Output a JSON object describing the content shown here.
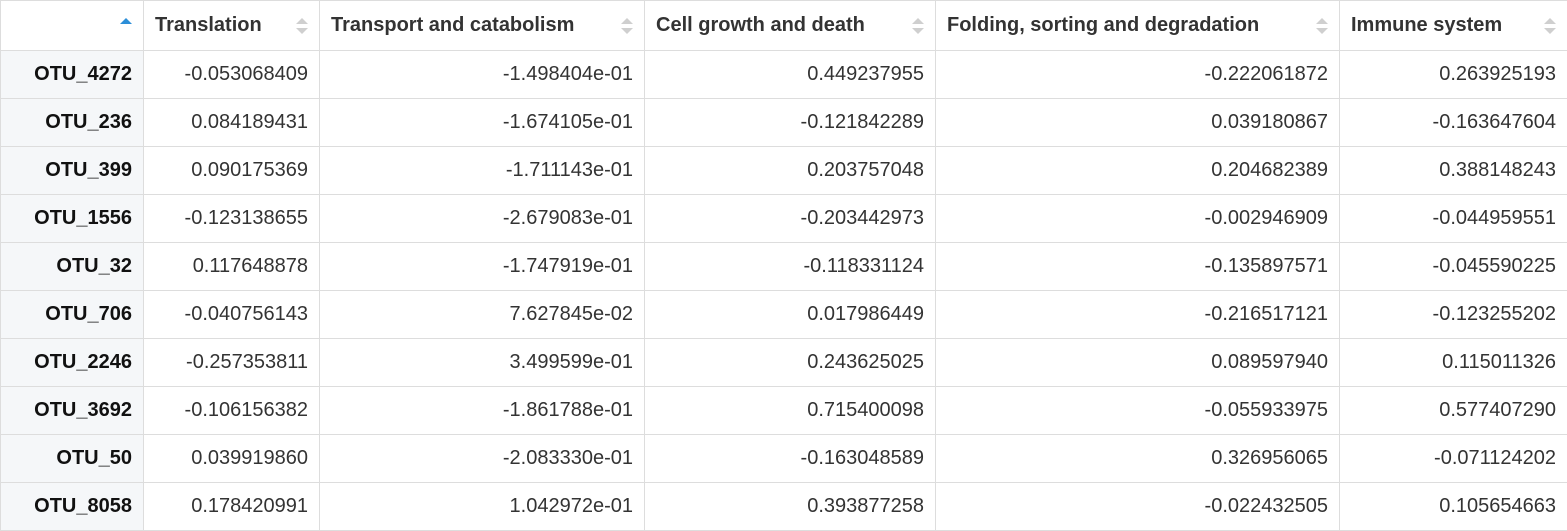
{
  "table": {
    "sorted_column": 0,
    "sort_direction": "ascending",
    "accent_color": "#2c8ed8",
    "columns": [
      "",
      "Translation",
      "Transport and catabolism",
      "Cell growth and death",
      "Folding, sorting and degradation",
      "Immune system"
    ],
    "rows": [
      {
        "name": "OTU_4272",
        "values": [
          "-0.053068409",
          "-1.498404e-01",
          "0.449237955",
          "-0.222061872",
          "0.263925193"
        ]
      },
      {
        "name": "OTU_236",
        "values": [
          "0.084189431",
          "-1.674105e-01",
          "-0.121842289",
          "0.039180867",
          "-0.163647604"
        ]
      },
      {
        "name": "OTU_399",
        "values": [
          "0.090175369",
          "-1.711143e-01",
          "0.203757048",
          "0.204682389",
          "0.388148243"
        ]
      },
      {
        "name": "OTU_1556",
        "values": [
          "-0.123138655",
          "-2.679083e-01",
          "-0.203442973",
          "-0.002946909",
          "-0.044959551"
        ]
      },
      {
        "name": "OTU_32",
        "values": [
          "0.117648878",
          "-1.747919e-01",
          "-0.118331124",
          "-0.135897571",
          "-0.045590225"
        ]
      },
      {
        "name": "OTU_706",
        "values": [
          "-0.040756143",
          "7.627845e-02",
          "0.017986449",
          "-0.216517121",
          "-0.123255202"
        ]
      },
      {
        "name": "OTU_2246",
        "values": [
          "-0.257353811",
          "3.499599e-01",
          "0.243625025",
          "0.089597940",
          "0.115011326"
        ]
      },
      {
        "name": "OTU_3692",
        "values": [
          "-0.106156382",
          "-1.861788e-01",
          "0.715400098",
          "-0.055933975",
          "0.577407290"
        ]
      },
      {
        "name": "OTU_50",
        "values": [
          "0.039919860",
          "-2.083330e-01",
          "-0.163048589",
          "0.326956065",
          "-0.071124202"
        ]
      },
      {
        "name": "OTU_8058",
        "values": [
          "0.178420991",
          "1.042972e-01",
          "0.393877258",
          "-0.022432505",
          "0.105654663"
        ]
      }
    ]
  }
}
